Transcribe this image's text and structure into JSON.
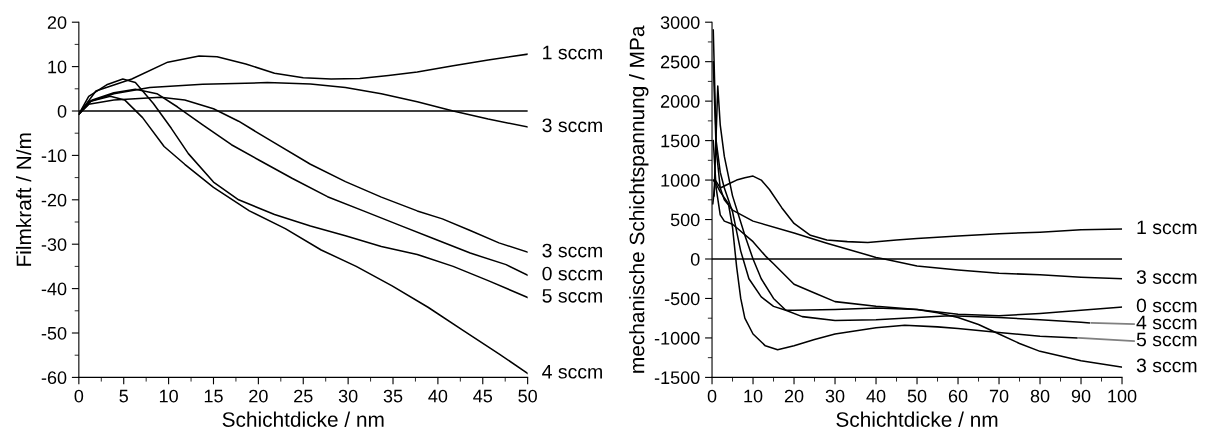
{
  "chart_data": [
    {
      "type": "line",
      "xlabel": "Schichtdicke / nm",
      "ylabel": "Filmkraft / N/m",
      "xlim": [
        0,
        50
      ],
      "ylim": [
        -60,
        20
      ],
      "xticks": [
        0,
        5,
        10,
        15,
        20,
        25,
        30,
        35,
        40,
        45,
        50
      ],
      "yticks": [
        -60,
        -50,
        -40,
        -30,
        -20,
        -10,
        0,
        10,
        20
      ],
      "grid": false,
      "legend": false,
      "marker": "none",
      "line_style": "solid",
      "ref_lines": [
        {
          "axis": "y",
          "value": 0,
          "color": "#000000"
        }
      ],
      "series": [
        {
          "name": "1 sccm",
          "color": "#000000",
          "x": [
            0,
            1.9,
            5.9,
            9.9,
            13.4,
            15.4,
            18.6,
            21.8,
            25,
            28.1,
            31.3,
            34.5,
            37.7,
            41.7,
            45.6,
            50
          ],
          "values": [
            -0.7,
            4.5,
            7.2,
            11,
            12.4,
            12.2,
            10.6,
            8.5,
            7.5,
            7.2,
            7.3,
            8,
            8.8,
            10.2,
            11.5,
            12.8
          ]
        },
        {
          "name": "3 sccm",
          "color": "#000000",
          "x": [
            0,
            1.1,
            3.9,
            7.9,
            13.8,
            21,
            25.8,
            29.7,
            33.7,
            37.7,
            41.7,
            45.6,
            50
          ],
          "values": [
            -0.7,
            2.1,
            3.9,
            5.3,
            6,
            6.4,
            6.1,
            5.3,
            3.9,
            2.1,
            0,
            -1.8,
            -3.6
          ]
        },
        {
          "name": "3 sccm",
          "color": "#000000",
          "x": [
            0,
            1.1,
            3.9,
            9.1,
            11.8,
            15,
            17.8,
            21.8,
            25.8,
            29.7,
            33.7,
            37.7,
            40.5,
            43.6,
            46.8,
            50
          ],
          "values": [
            -0.7,
            1.5,
            2.5,
            3.1,
            2.5,
            0.5,
            -2.3,
            -7.2,
            -12,
            -15.9,
            -19.4,
            -22.5,
            -24.3,
            -26.9,
            -29.7,
            -31.8
          ]
        },
        {
          "name": "0 sccm",
          "color": "#000000",
          "x": [
            0,
            1.5,
            3.9,
            6.3,
            8.7,
            11,
            13.8,
            17,
            20.2,
            23.8,
            27.7,
            31.7,
            35.7,
            39.7,
            43.6,
            47.6,
            50
          ],
          "values": [
            -0.7,
            2.5,
            4.1,
            4.9,
            3.9,
            0.9,
            -3.1,
            -7.6,
            -11.2,
            -15.2,
            -19.3,
            -22.5,
            -25.7,
            -28.9,
            -32,
            -34.6,
            -37
          ]
        },
        {
          "name": "5 sccm",
          "color": "#000000",
          "x": [
            0,
            1.1,
            3.1,
            4.9,
            6.3,
            8.3,
            10.3,
            12.2,
            15,
            17.8,
            21.8,
            25.8,
            29.7,
            33.7,
            37.7,
            41.7,
            45.6,
            50
          ],
          "values": [
            -0.7,
            3.3,
            5.9,
            7.2,
            6.4,
            1.7,
            -3.9,
            -9.6,
            -16,
            -20,
            -23.3,
            -25.9,
            -28.1,
            -30.5,
            -32.3,
            -35,
            -38.2,
            -42
          ]
        },
        {
          "name": "4 sccm",
          "color": "#000000",
          "x": [
            0,
            1.1,
            3.5,
            5.1,
            7.1,
            9.5,
            11.8,
            15,
            19,
            23,
            27,
            30.9,
            34.9,
            38.9,
            42.8,
            46.8,
            50
          ],
          "values": [
            -0.7,
            2.1,
            3.3,
            2.5,
            -1.5,
            -8,
            -12,
            -17.2,
            -22.5,
            -26.5,
            -31.3,
            -35,
            -39.4,
            -44.2,
            -49.4,
            -54.7,
            -59.1
          ]
        }
      ]
    },
    {
      "type": "line",
      "xlabel": "Schichtdicke / nm",
      "ylabel": "mechanische Schichtspannung / MPa",
      "xlim": [
        0,
        100
      ],
      "ylim": [
        -1500,
        3000
      ],
      "xticks": [
        0,
        10,
        20,
        30,
        40,
        50,
        60,
        70,
        80,
        90,
        100
      ],
      "yticks": [
        -1500,
        -1000,
        -500,
        0,
        500,
        1000,
        1500,
        2000,
        2500,
        3000
      ],
      "grid": false,
      "legend": false,
      "marker": "none",
      "line_style": "solid",
      "ref_lines": [
        {
          "axis": "y",
          "value": 0,
          "color": "#000000"
        }
      ],
      "series": [
        {
          "name": "1 sccm",
          "color": "#000000",
          "x": [
            0.2,
            0.8,
            2,
            4,
            6,
            8,
            10,
            12,
            14,
            17,
            20,
            24,
            28,
            33,
            38,
            45,
            50,
            60,
            70,
            80,
            90,
            100
          ],
          "values": [
            700,
            1000,
            900,
            950,
            1000,
            1030,
            1050,
            1000,
            880,
            650,
            450,
            300,
            240,
            220,
            210,
            240,
            260,
            290,
            320,
            340,
            370,
            380
          ]
        },
        {
          "name": "3 sccm",
          "color": "#000000",
          "x": [
            0.3,
            1,
            2,
            3,
            5,
            10,
            20,
            28,
            40,
            42,
            50,
            60,
            70,
            80,
            90,
            100
          ],
          "values": [
            2500,
            1400,
            900,
            750,
            620,
            480,
            330,
            200,
            20,
            0,
            -90,
            -140,
            -180,
            -200,
            -230,
            -250
          ]
        },
        {
          "name": "3 sccm",
          "color": "#000000",
          "x": [
            0.3,
            1,
            2,
            3,
            5,
            10,
            13,
            15,
            20,
            25,
            30,
            40,
            50,
            55,
            60,
            65,
            70,
            75,
            80,
            90,
            100
          ],
          "values": [
            1500,
            900,
            560,
            480,
            440,
            220,
            40,
            -60,
            -320,
            -430,
            -540,
            -600,
            -640,
            -680,
            -740,
            -830,
            -950,
            -1070,
            -1170,
            -1290,
            -1370
          ]
        },
        {
          "name": "0 sccm",
          "color": "#000000",
          "x": [
            0.3,
            1,
            2,
            3,
            5,
            7,
            9,
            12,
            15,
            18,
            20,
            30,
            40,
            50,
            60,
            70,
            80,
            90,
            100
          ],
          "values": [
            2900,
            1500,
            1100,
            900,
            600,
            100,
            -250,
            -480,
            -600,
            -650,
            -650,
            -640,
            -620,
            -640,
            -700,
            -720,
            -690,
            -650,
            -610
          ]
        },
        {
          "name": "4 sccm",
          "color": "#000000",
          "x": [
            0.5,
            1.4,
            2,
            3,
            5,
            8,
            10,
            12,
            15,
            18,
            22,
            30,
            40,
            50,
            58,
            70,
            80,
            90,
            92
          ],
          "values": [
            800,
            2190,
            1700,
            1300,
            800,
            300,
            0,
            -250,
            -500,
            -650,
            -730,
            -780,
            -770,
            -740,
            -720,
            -740,
            -770,
            -800,
            -810
          ]
        },
        {
          "name": "5 sccm",
          "color": "#000000",
          "x": [
            0.3,
            1,
            2,
            4,
            5,
            6,
            7,
            8,
            10,
            13,
            16,
            20,
            25,
            30,
            40,
            47,
            55,
            60,
            70,
            80,
            89
          ],
          "values": [
            1000,
            950,
            850,
            700,
            400,
            -100,
            -500,
            -750,
            -950,
            -1100,
            -1150,
            -1100,
            -1020,
            -950,
            -870,
            -840,
            -860,
            -880,
            -930,
            -980,
            -1000
          ]
        }
      ]
    }
  ]
}
